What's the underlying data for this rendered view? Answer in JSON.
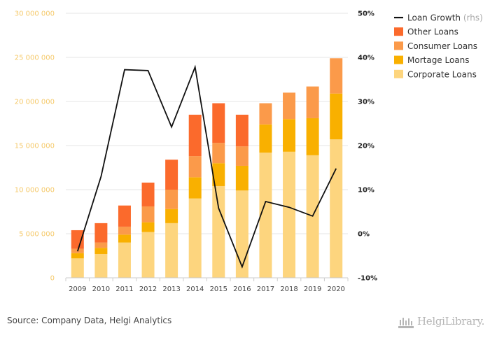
{
  "chart_data": {
    "type": "bar",
    "stacked": true,
    "categories": [
      "2009",
      "2010",
      "2011",
      "2012",
      "2013",
      "2014",
      "2015",
      "2016",
      "2017",
      "2018",
      "2019",
      "2020"
    ],
    "series": [
      {
        "name": "Corporate Loans",
        "color": "#fdd57e",
        "values": [
          2200000,
          2700000,
          4000000,
          5200000,
          6200000,
          9000000,
          10400000,
          9900000,
          14200000,
          14300000,
          13900000,
          15700000
        ]
      },
      {
        "name": "Mortage Loans",
        "color": "#f9b000",
        "values": [
          600000,
          700000,
          900000,
          1100000,
          1600000,
          2400000,
          2600000,
          2800000,
          3200000,
          3700000,
          4200000,
          5200000
        ]
      },
      {
        "name": "Consumer Loans",
        "color": "#fb9a4a",
        "values": [
          500000,
          600000,
          900000,
          1800000,
          2200000,
          2400000,
          2300000,
          2200000,
          2400000,
          3000000,
          3600000,
          4000000
        ]
      },
      {
        "name": "Other Loans",
        "color": "#fb6a2c",
        "values": [
          2100000,
          2200000,
          2400000,
          2700000,
          3400000,
          4700000,
          4500000,
          3600000,
          0,
          0,
          0,
          0
        ]
      }
    ],
    "line": {
      "name": "Loan Growth",
      "name_suffix": "(rhs)",
      "color": "#111111",
      "values": [
        -4.0,
        13.0,
        37.2,
        37.0,
        24.2,
        37.8,
        5.8,
        -7.5,
        7.3,
        6.0,
        4.0,
        14.8
      ]
    },
    "y_left": {
      "min": 0,
      "max": 30000000,
      "ticks": [
        0,
        5000000,
        10000000,
        15000000,
        20000000,
        25000000,
        30000000
      ],
      "tick_labels": [
        "0",
        "5 000 000",
        "10 000 000",
        "15 000 000",
        "20 000 000",
        "25 000 000",
        "30 000 000"
      ]
    },
    "y_right": {
      "min": -10,
      "max": 50,
      "ticks": [
        -10,
        0,
        10,
        20,
        30,
        40,
        50
      ],
      "tick_labels": [
        "-10%",
        "0%",
        "10%",
        "20%",
        "30%",
        "40%",
        "50%"
      ]
    },
    "legend_order": [
      "Loan Growth",
      "Other Loans",
      "Consumer Loans",
      "Mortage Loans",
      "Corporate Loans"
    ],
    "legend_position": "top-right",
    "grid": true
  },
  "footer": {
    "source": "Source: Company Data, Helgi Analytics",
    "logo_text": "HelgiLibrary."
  }
}
